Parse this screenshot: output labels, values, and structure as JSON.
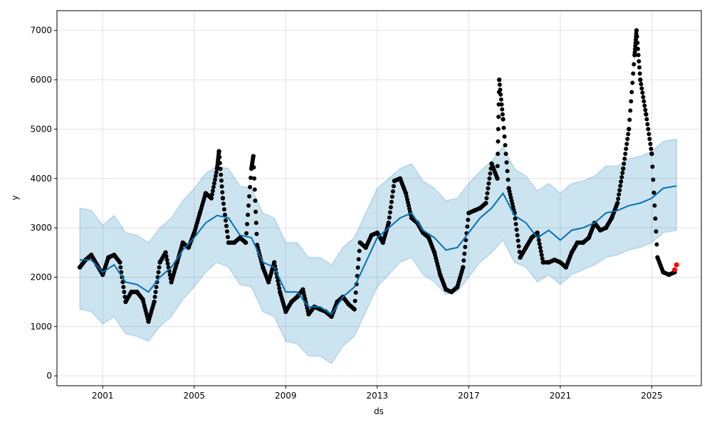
{
  "chart_data": {
    "type": "line",
    "title": "",
    "xlabel": "ds",
    "ylabel": "y",
    "xlim": [
      "1999-01",
      "2027-03"
    ],
    "ylim": [
      -200,
      7400
    ],
    "grid": true,
    "x_ticks": [
      "2001",
      "2005",
      "2009",
      "2013",
      "2017",
      "2021",
      "2025"
    ],
    "y_ticks": [
      0,
      1000,
      2000,
      3000,
      4000,
      5000,
      6000,
      7000
    ],
    "colors": {
      "actual": "#000000",
      "forecast": "#0072B2",
      "interval": "#0072B2",
      "recent": "#FF0000"
    },
    "forecast": {
      "ds": [
        "2000-01",
        "2000-07",
        "2001-01",
        "2001-07",
        "2002-01",
        "2002-07",
        "2003-01",
        "2003-07",
        "2004-01",
        "2004-07",
        "2005-01",
        "2005-07",
        "2006-01",
        "2006-07",
        "2007-01",
        "2007-07",
        "2008-01",
        "2008-07",
        "2009-01",
        "2009-07",
        "2010-01",
        "2010-07",
        "2011-01",
        "2011-07",
        "2012-01",
        "2012-07",
        "2013-01",
        "2013-07",
        "2014-01",
        "2014-07",
        "2015-01",
        "2015-07",
        "2016-01",
        "2016-07",
        "2017-01",
        "2017-07",
        "2018-01",
        "2018-07",
        "2019-01",
        "2019-07",
        "2020-01",
        "2020-07",
        "2021-01",
        "2021-07",
        "2022-01",
        "2022-07",
        "2023-01",
        "2023-07",
        "2024-01",
        "2024-07",
        "2025-01",
        "2025-07",
        "2026-02"
      ],
      "yhat": [
        2350,
        2350,
        2100,
        2250,
        1900,
        1850,
        1700,
        2000,
        2200,
        2550,
        2800,
        3100,
        3250,
        3200,
        2850,
        2800,
        2300,
        2200,
        1700,
        1700,
        1400,
        1400,
        1250,
        1600,
        1800,
        2300,
        2800,
        3000,
        3200,
        3300,
        2950,
        2800,
        2550,
        2600,
        2900,
        3200,
        3400,
        3700,
        3250,
        3100,
        2800,
        2950,
        2750,
        2950,
        3000,
        3100,
        3300,
        3350,
        3450,
        3500,
        3600,
        3800,
        3850
      ],
      "yhat_lower": [
        1350,
        1300,
        1050,
        1200,
        850,
        800,
        700,
        1000,
        1200,
        1550,
        1800,
        2100,
        2300,
        2200,
        1850,
        1800,
        1300,
        1200,
        700,
        650,
        400,
        400,
        250,
        600,
        800,
        1300,
        1800,
        2050,
        2300,
        2400,
        2050,
        1900,
        1650,
        1700,
        2000,
        2300,
        2500,
        2750,
        2300,
        2200,
        1900,
        2050,
        1850,
        2050,
        2150,
        2250,
        2400,
        2450,
        2550,
        2600,
        2700,
        2900,
        2950
      ],
      "yhat_upper": [
        3400,
        3350,
        3050,
        3250,
        2900,
        2850,
        2700,
        3000,
        3200,
        3550,
        3800,
        4100,
        4250,
        4200,
        3850,
        3800,
        3300,
        3200,
        2700,
        2700,
        2400,
        2400,
        2250,
        2600,
        2800,
        3300,
        3800,
        4000,
        4200,
        4300,
        3950,
        3800,
        3550,
        3600,
        3900,
        4150,
        4350,
        4650,
        4200,
        4050,
        3750,
        3900,
        3700,
        3900,
        3950,
        4050,
        4250,
        4250,
        4400,
        4450,
        4550,
        4750,
        4800
      ]
    },
    "actual": {
      "ds": [
        "2000-01",
        "2000-04",
        "2000-07",
        "2000-10",
        "2001-01",
        "2001-04",
        "2001-07",
        "2001-10",
        "2002-01",
        "2002-04",
        "2002-07",
        "2002-10",
        "2003-01",
        "2003-04",
        "2003-07",
        "2003-10",
        "2004-01",
        "2004-04",
        "2004-07",
        "2004-10",
        "2005-01",
        "2005-04",
        "2005-07",
        "2005-10",
        "2006-01",
        "2006-02",
        "2006-04",
        "2006-07",
        "2006-10",
        "2007-01",
        "2007-04",
        "2007-07",
        "2007-08",
        "2007-10",
        "2008-01",
        "2008-04",
        "2008-07",
        "2008-10",
        "2009-01",
        "2009-04",
        "2009-07",
        "2009-10",
        "2010-01",
        "2010-04",
        "2010-07",
        "2010-10",
        "2011-01",
        "2011-04",
        "2011-07",
        "2011-10",
        "2012-01",
        "2012-04",
        "2012-07",
        "2012-10",
        "2013-01",
        "2013-04",
        "2013-07",
        "2013-10",
        "2014-01",
        "2014-04",
        "2014-07",
        "2014-10",
        "2015-01",
        "2015-04",
        "2015-07",
        "2015-10",
        "2016-01",
        "2016-04",
        "2016-07",
        "2016-10",
        "2017-01",
        "2017-04",
        "2017-07",
        "2017-10",
        "2018-01",
        "2018-04",
        "2018-05",
        "2018-07",
        "2018-10",
        "2019-01",
        "2019-04",
        "2019-07",
        "2019-10",
        "2020-01",
        "2020-04",
        "2020-07",
        "2020-10",
        "2021-01",
        "2021-04",
        "2021-07",
        "2021-10",
        "2022-01",
        "2022-04",
        "2022-07",
        "2022-10",
        "2023-01",
        "2023-04",
        "2023-07",
        "2023-10",
        "2024-01",
        "2024-04",
        "2024-05",
        "2024-07",
        "2024-10",
        "2025-01",
        "2025-04",
        "2025-07",
        "2025-10",
        "2026-01"
      ],
      "y": [
        2200,
        2350,
        2450,
        2250,
        2050,
        2400,
        2450,
        2300,
        1500,
        1700,
        1700,
        1550,
        1100,
        1500,
        2300,
        2500,
        1900,
        2300,
        2700,
        2600,
        2900,
        3300,
        3700,
        3600,
        4200,
        4550,
        3600,
        2700,
        2700,
        2800,
        2700,
        4200,
        4450,
        2650,
        2200,
        1900,
        2300,
        1700,
        1300,
        1500,
        1600,
        1750,
        1250,
        1400,
        1350,
        1300,
        1200,
        1500,
        1600,
        1450,
        1350,
        2700,
        2600,
        2850,
        2900,
        2700,
        3100,
        3950,
        4000,
        3700,
        3200,
        3100,
        2900,
        2800,
        2500,
        2050,
        1750,
        1700,
        1800,
        2200,
        3300,
        3350,
        3400,
        3500,
        4300,
        4000,
        6000,
        5200,
        3800,
        3300,
        2400,
        2600,
        2800,
        2900,
        2300,
        2300,
        2350,
        2300,
        2200,
        2500,
        2700,
        2700,
        2800,
        3100,
        2950,
        3000,
        3200,
        3500,
        4200,
        5000,
        6500,
        7000,
        6000,
        5300,
        4500,
        2400,
        2100,
        2050,
        2100
      ]
    },
    "recent": {
      "ds": [
        "2026-01",
        "2026-02"
      ],
      "y": [
        2150,
        2250
      ]
    }
  }
}
